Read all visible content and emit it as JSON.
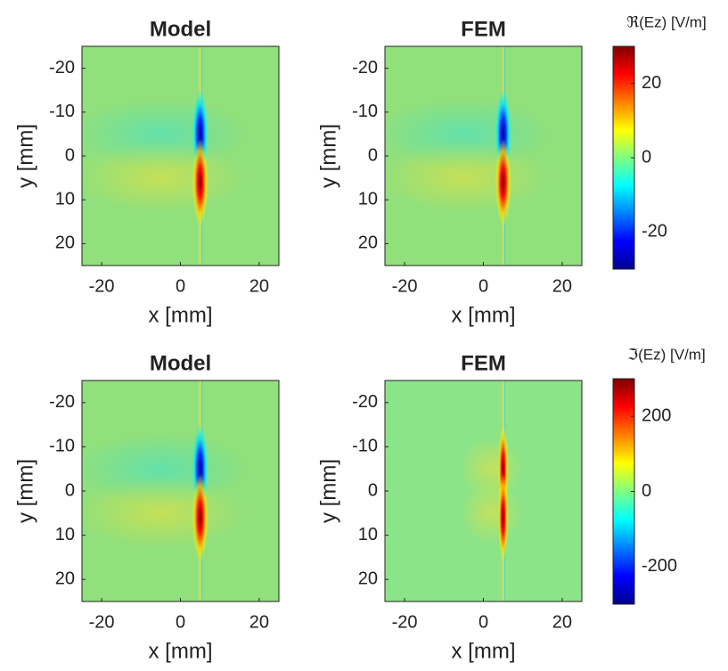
{
  "chart_data": [
    {
      "type": "heatmap",
      "title": "Model",
      "x_label": "x [mm]",
      "y_label": "y [mm]",
      "xlim": [
        -25,
        25
      ],
      "ylim": [
        -25,
        25
      ],
      "y_reversed": true,
      "xticks": [
        -20,
        0,
        20
      ],
      "yticks": [
        -20,
        -10,
        0,
        10,
        20
      ]
    },
    {
      "type": "heatmap",
      "title": "FEM",
      "x_label": "x [mm]",
      "y_label": "y [mm]",
      "xlim": [
        -25,
        25
      ],
      "ylim": [
        -25,
        25
      ],
      "y_reversed": true,
      "xticks": [
        -20,
        0,
        20
      ],
      "yticks": [
        -20,
        -10,
        0,
        10,
        20
      ]
    },
    {
      "type": "colorbar",
      "label": "ℜ(Ez) [V/m]",
      "colormap": "jet",
      "ylim": [
        -30,
        30
      ],
      "yticks": [
        -20,
        0,
        20
      ]
    },
    {
      "type": "heatmap",
      "title": "Model",
      "x_label": "x [mm]",
      "y_label": "y [mm]",
      "xlim": [
        -25,
        25
      ],
      "ylim": [
        -25,
        25
      ],
      "y_reversed": true,
      "xticks": [
        -20,
        0,
        20
      ],
      "yticks": [
        -20,
        -10,
        0,
        10,
        20
      ]
    },
    {
      "type": "heatmap",
      "title": "FEM",
      "x_label": "x [mm]",
      "y_label": "y [mm]",
      "xlim": [
        -25,
        25
      ],
      "ylim": [
        -25,
        25
      ],
      "y_reversed": true,
      "xticks": [
        -20,
        0,
        20
      ],
      "yticks": [
        -20,
        -10,
        0,
        10,
        20
      ]
    },
    {
      "type": "colorbar",
      "label": "ℑ(Ez) [V/m]",
      "colormap": "jet",
      "ylim": [
        -300,
        300
      ],
      "yticks": [
        -200,
        0,
        200
      ]
    }
  ]
}
